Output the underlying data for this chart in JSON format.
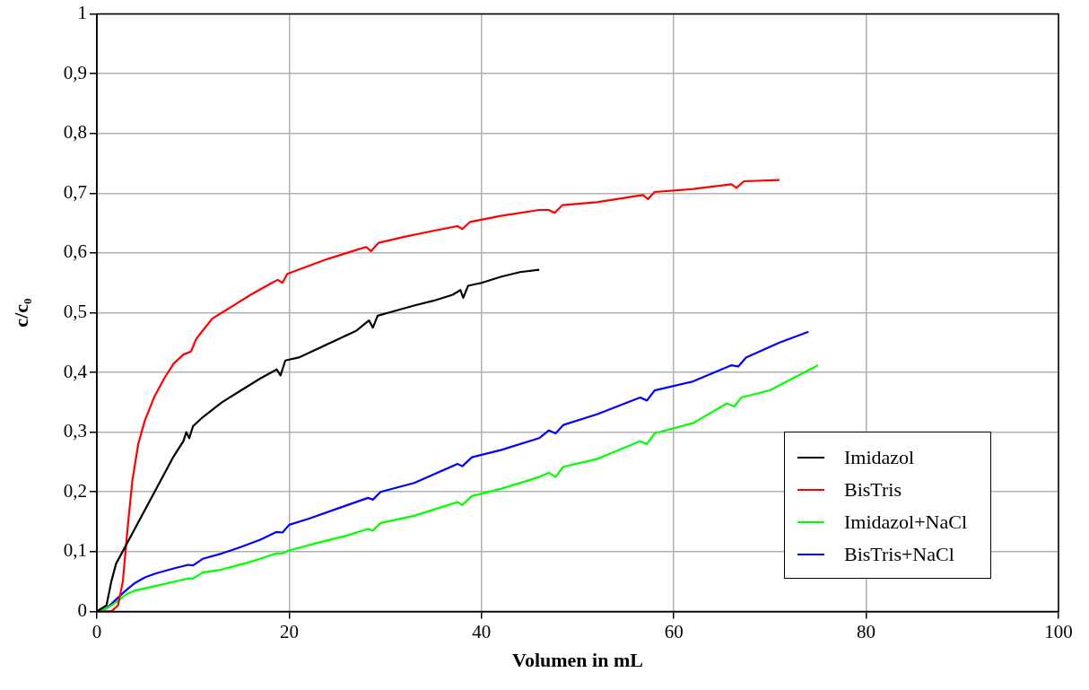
{
  "chart_data": {
    "type": "line",
    "xlabel": "Volumen in mL",
    "ylabel": "c/c₀",
    "xlim": [
      0,
      100
    ],
    "xticks": [
      0,
      20,
      40,
      60,
      80,
      100
    ],
    "ylim": [
      0,
      1
    ],
    "yticks": [
      0,
      {
        "value": 0.1,
        "label": "0,1"
      },
      {
        "value": 0.2,
        "label": "0,2"
      },
      {
        "value": 0.3,
        "label": "0,3"
      },
      {
        "value": 0.4,
        "label": "0,4"
      },
      {
        "value": 0.5,
        "label": "0,5"
      },
      {
        "value": 0.6,
        "label": "0,6"
      },
      {
        "value": 0.7,
        "label": "0,7"
      },
      {
        "value": 0.8,
        "label": "0,8"
      },
      {
        "value": 0.9,
        "label": "0,9"
      },
      1
    ],
    "grid": true,
    "legend": "bottom right",
    "marker": "none",
    "line_style": "solid",
    "series": [
      {
        "name": "Imidazol",
        "color": "#000000",
        "x": [
          0,
          1,
          1.5,
          2,
          3,
          4,
          5,
          6,
          7,
          8,
          9,
          9.3,
          9.6,
          10,
          11,
          13,
          15,
          17,
          18.7,
          19.1,
          19.6,
          21,
          23,
          25,
          27,
          28.3,
          28.7,
          29.2,
          31,
          33,
          35,
          37,
          37.8,
          38.1,
          38.6,
          40,
          42,
          44,
          46
        ],
        "values": [
          0,
          0.01,
          0.05,
          0.08,
          0.11,
          0.14,
          0.17,
          0.2,
          0.23,
          0.26,
          0.285,
          0.3,
          0.29,
          0.31,
          0.325,
          0.35,
          0.37,
          0.39,
          0.405,
          0.395,
          0.42,
          0.425,
          0.44,
          0.455,
          0.47,
          0.487,
          0.475,
          0.495,
          0.503,
          0.512,
          0.52,
          0.53,
          0.538,
          0.525,
          0.545,
          0.55,
          0.56,
          0.568,
          0.572
        ]
      },
      {
        "name": "BisTris",
        "color": "#ff0000",
        "x": [
          0.5,
          1.5,
          2.2,
          2.7,
          3.2,
          3.7,
          4.3,
          5,
          6,
          7,
          8,
          9,
          9.8,
          10.3,
          11,
          12,
          14,
          16,
          18,
          18.8,
          19.3,
          19.8,
          22,
          24,
          26,
          28,
          28.5,
          29.3,
          32,
          35,
          37.5,
          38,
          38.8,
          42,
          46,
          47,
          47.6,
          48.4,
          52,
          56,
          56.8,
          57.3,
          58,
          62,
          66,
          66.5,
          67.3,
          71
        ],
        "values": [
          0,
          0,
          0.01,
          0.05,
          0.14,
          0.22,
          0.28,
          0.32,
          0.36,
          0.39,
          0.415,
          0.43,
          0.435,
          0.455,
          0.47,
          0.49,
          0.51,
          0.53,
          0.548,
          0.555,
          0.55,
          0.565,
          0.578,
          0.59,
          0.6,
          0.61,
          0.603,
          0.617,
          0.627,
          0.637,
          0.645,
          0.64,
          0.652,
          0.662,
          0.672,
          0.672,
          0.667,
          0.68,
          0.685,
          0.695,
          0.697,
          0.69,
          0.702,
          0.707,
          0.715,
          0.709,
          0.72,
          0.722
        ]
      },
      {
        "name": "Imidazol+NaCl",
        "color": "#00ff00",
        "x": [
          0,
          1,
          2,
          3,
          4,
          6,
          9.5,
          10,
          11,
          13,
          16,
          18.7,
          19.3,
          20,
          23,
          26,
          28.2,
          28.7,
          29.5,
          33,
          37.5,
          38,
          39,
          42,
          46,
          47,
          47.7,
          48.5,
          52,
          56.5,
          57.2,
          58,
          62,
          65.5,
          66.3,
          67,
          70,
          75
        ],
        "values": [
          0,
          0.005,
          0.015,
          0.028,
          0.035,
          0.042,
          0.055,
          0.055,
          0.065,
          0.07,
          0.083,
          0.097,
          0.097,
          0.102,
          0.115,
          0.127,
          0.138,
          0.135,
          0.148,
          0.16,
          0.183,
          0.178,
          0.193,
          0.205,
          0.225,
          0.232,
          0.225,
          0.242,
          0.255,
          0.285,
          0.28,
          0.298,
          0.315,
          0.348,
          0.343,
          0.358,
          0.37,
          0.412
        ]
      },
      {
        "name": "BisTris+NaCl",
        "color": "#0000ff",
        "x": [
          0,
          1,
          2,
          3,
          4,
          5,
          6,
          8,
          9.5,
          10,
          11,
          13,
          15,
          17,
          18.7,
          19.3,
          20,
          22,
          25,
          28.2,
          28.7,
          29.5,
          33,
          37.5,
          38,
          39,
          42,
          46,
          47,
          47.7,
          48.5,
          52,
          56.5,
          57.2,
          58,
          62,
          66,
          66.7,
          67.5,
          71,
          74
        ],
        "values": [
          0,
          0.005,
          0.02,
          0.035,
          0.048,
          0.057,
          0.063,
          0.072,
          0.078,
          0.077,
          0.088,
          0.097,
          0.108,
          0.12,
          0.133,
          0.132,
          0.145,
          0.155,
          0.172,
          0.19,
          0.187,
          0.2,
          0.215,
          0.247,
          0.243,
          0.258,
          0.27,
          0.29,
          0.303,
          0.298,
          0.312,
          0.33,
          0.358,
          0.353,
          0.37,
          0.385,
          0.412,
          0.41,
          0.425,
          0.45,
          0.468
        ]
      }
    ]
  }
}
